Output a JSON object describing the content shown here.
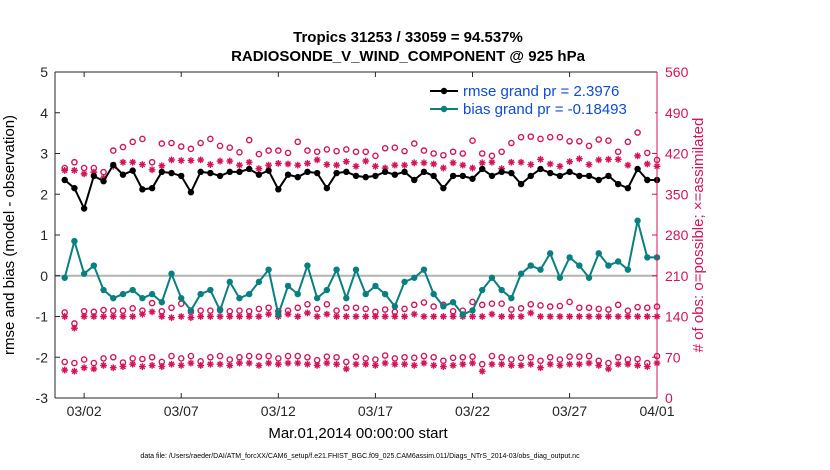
{
  "chart_data": {
    "type": "line",
    "title_line1": "Tropics 31253 / 33059 = 94.537%",
    "title_line2": "RADIOSONDE_V_WIND_COMPONENT @ 925 hPa",
    "xlabel": "Mar.01,2014 00:00:00 start",
    "ylabel_left": "rmse and bias (model - observation)",
    "ylabel_right": "# of obs: o=possible; ×=assimilated",
    "footnote": "data file: /Users/raeder/DAI/ATM_forcXX/CAM6_setup/f.e21.FHIST_BGC.f09_025.CAM6assim.011/Diags_NTrS_2014-03/obs_diag_output.nc",
    "x_range": [
      0,
      62
    ],
    "ylim_left": [
      -3,
      5
    ],
    "ylim_right": [
      0,
      560
    ],
    "x_ticks": [
      {
        "pos": 3,
        "label": "03/02"
      },
      {
        "pos": 13,
        "label": "03/07"
      },
      {
        "pos": 23,
        "label": "03/12"
      },
      {
        "pos": 33,
        "label": "03/17"
      },
      {
        "pos": 43,
        "label": "03/22"
      },
      {
        "pos": 53,
        "label": "03/27"
      },
      {
        "pos": 63,
        "label": "04/01"
      }
    ],
    "y_ticks_left": [
      "5",
      "4",
      "3",
      "2",
      "1",
      "0",
      "-1",
      "-2",
      "-3"
    ],
    "y_ticks_right": [
      "560",
      "490",
      "420",
      "350",
      "280",
      "210",
      "140",
      "70",
      "0"
    ],
    "zero_line": 0,
    "series": [
      {
        "name": "rmse",
        "legend": "rmse grand pr = 2.3976",
        "color": "#000000",
        "values": [
          2.35,
          2.15,
          1.65,
          2.45,
          2.32,
          2.72,
          2.48,
          2.58,
          2.12,
          2.15,
          2.55,
          2.52,
          2.45,
          2.05,
          2.55,
          2.52,
          2.45,
          2.55,
          2.55,
          2.62,
          2.48,
          2.58,
          2.12,
          2.48,
          2.42,
          2.55,
          2.52,
          2.15,
          2.52,
          2.55,
          2.45,
          2.42,
          2.45,
          2.55,
          2.48,
          2.55,
          2.35,
          2.55,
          2.45,
          2.15,
          2.45,
          2.45,
          2.38,
          2.62,
          2.45,
          2.55,
          2.52,
          2.25,
          2.45,
          2.62,
          2.52,
          2.45,
          2.55,
          2.45,
          2.45,
          2.35,
          2.45,
          2.25,
          2.15,
          2.62,
          2.35,
          2.35
        ]
      },
      {
        "name": "bias",
        "legend": "bias grand pr = -0.18493",
        "color": "#0a7f80",
        "values": [
          -0.05,
          0.85,
          0.05,
          0.25,
          -0.35,
          -0.55,
          -0.45,
          -0.35,
          -0.55,
          -0.45,
          -0.65,
          0.05,
          -0.55,
          -0.85,
          -0.45,
          -0.35,
          -0.85,
          -0.15,
          -0.55,
          -0.45,
          -0.15,
          0.15,
          -0.95,
          -0.25,
          -0.45,
          0.25,
          -0.55,
          -0.35,
          0.15,
          -0.55,
          0.15,
          -0.45,
          -0.25,
          -0.45,
          -0.75,
          -0.15,
          -0.05,
          0.15,
          -0.45,
          -0.75,
          -0.65,
          -0.95,
          -0.85,
          -0.35,
          -0.05,
          -0.35,
          -0.55,
          0.05,
          0.25,
          0.15,
          0.55,
          -0.05,
          0.45,
          0.25,
          -0.05,
          0.55,
          0.25,
          0.35,
          0.15,
          1.35,
          0.45,
          0.45
        ]
      },
      {
        "name": "possible_00Z",
        "kind": "possible",
        "values": [
          395,
          405,
          395,
          395,
          388,
          425,
          431,
          440,
          445,
          405,
          437,
          438,
          432,
          428,
          438,
          445,
          433,
          430,
          422,
          443,
          419,
          425,
          425,
          421,
          440,
          425,
          423,
          427,
          424,
          427,
          423,
          423,
          416,
          429,
          430,
          424,
          437,
          425,
          420,
          417,
          423,
          420,
          442,
          420,
          416,
          423,
          438,
          448,
          449,
          445,
          448,
          448,
          441,
          441,
          433,
          444,
          442,
          423,
          440,
          456,
          421,
          409
        ]
      },
      {
        "name": "assimilated_00Z",
        "kind": "assimilated",
        "values": [
          391,
          391,
          385,
          388,
          378,
          398,
          405,
          405,
          401,
          392,
          399,
          409,
          408,
          408,
          409,
          401,
          407,
          407,
          400,
          405,
          394,
          400,
          403,
          402,
          400,
          403,
          409,
          401,
          400,
          406,
          398,
          407,
          398,
          395,
          400,
          400,
          404,
          404,
          402,
          395,
          404,
          400,
          395,
          404,
          405,
          394,
          405,
          405,
          401,
          410,
          402,
          398,
          406,
          411,
          401,
          409,
          410,
          410,
          400,
          416,
          402,
          398
        ]
      },
      {
        "name": "possible_12Z",
        "kind": "possible",
        "values": [
          147,
          128,
          149,
          148,
          151,
          150,
          150,
          154,
          150,
          163,
          149,
          155,
          162,
          148,
          150,
          150,
          152,
          149,
          150,
          149,
          153,
          155,
          149,
          150,
          155,
          161,
          153,
          161,
          150,
          155,
          155,
          153,
          148,
          152,
          148,
          153,
          160,
          164,
          157,
          160,
          149,
          150,
          165,
          160,
          162,
          162,
          152,
          154,
          161,
          159,
          157,
          158,
          165,
          155,
          155,
          153,
          152,
          160,
          150,
          156,
          155,
          157
        ]
      },
      {
        "name": "assimilated_12Z",
        "kind": "assimilated",
        "values": [
          140,
          120,
          140,
          140,
          140,
          140,
          140,
          140,
          144,
          148,
          140,
          138,
          140,
          138,
          140,
          140,
          140,
          140,
          140,
          140,
          140,
          144,
          140,
          144,
          140,
          146,
          140,
          144,
          140,
          140,
          140,
          140,
          140,
          140,
          140,
          140,
          144,
          140,
          140,
          140,
          140,
          140,
          140,
          140,
          144,
          140,
          140,
          140,
          146,
          140,
          140,
          140,
          140,
          140,
          140,
          140,
          140,
          140,
          140,
          140,
          140,
          140
        ]
      },
      {
        "name": "possible_06Z",
        "kind": "possible",
        "values": [
          62,
          60,
          66,
          60,
          68,
          70,
          61,
          68,
          67,
          70,
          62,
          72,
          68,
          72,
          63,
          70,
          72,
          66,
          70,
          72,
          71,
          72,
          68,
          72,
          72,
          70,
          65,
          71,
          70,
          62,
          71,
          68,
          66,
          73,
          68,
          70,
          69,
          72,
          70,
          64,
          69,
          70,
          71,
          58,
          72,
          70,
          66,
          69,
          70,
          64,
          70,
          66,
          71,
          71,
          72,
          64,
          60,
          70,
          66,
          67,
          60,
          72
        ]
      },
      {
        "name": "assimilated_06Z",
        "kind": "assimilated",
        "values": [
          48,
          46,
          52,
          50,
          56,
          52,
          54,
          58,
          54,
          56,
          54,
          58,
          56,
          60,
          56,
          58,
          58,
          56,
          60,
          60,
          56,
          60,
          58,
          60,
          60,
          58,
          56,
          60,
          58,
          50,
          58,
          58,
          56,
          60,
          58,
          58,
          56,
          60,
          56,
          54,
          56,
          58,
          60,
          46,
          58,
          58,
          56,
          56,
          58,
          52,
          58,
          56,
          58,
          58,
          60,
          56,
          50,
          58,
          58,
          56,
          54,
          60
        ]
      }
    ],
    "colors": {
      "rmse": "#000000",
      "bias": "#0a7f80",
      "obs": "#d4145a",
      "legend_text": "#0f4bd6",
      "axis": "#262626",
      "zero_line": "#b3b3b3"
    }
  }
}
